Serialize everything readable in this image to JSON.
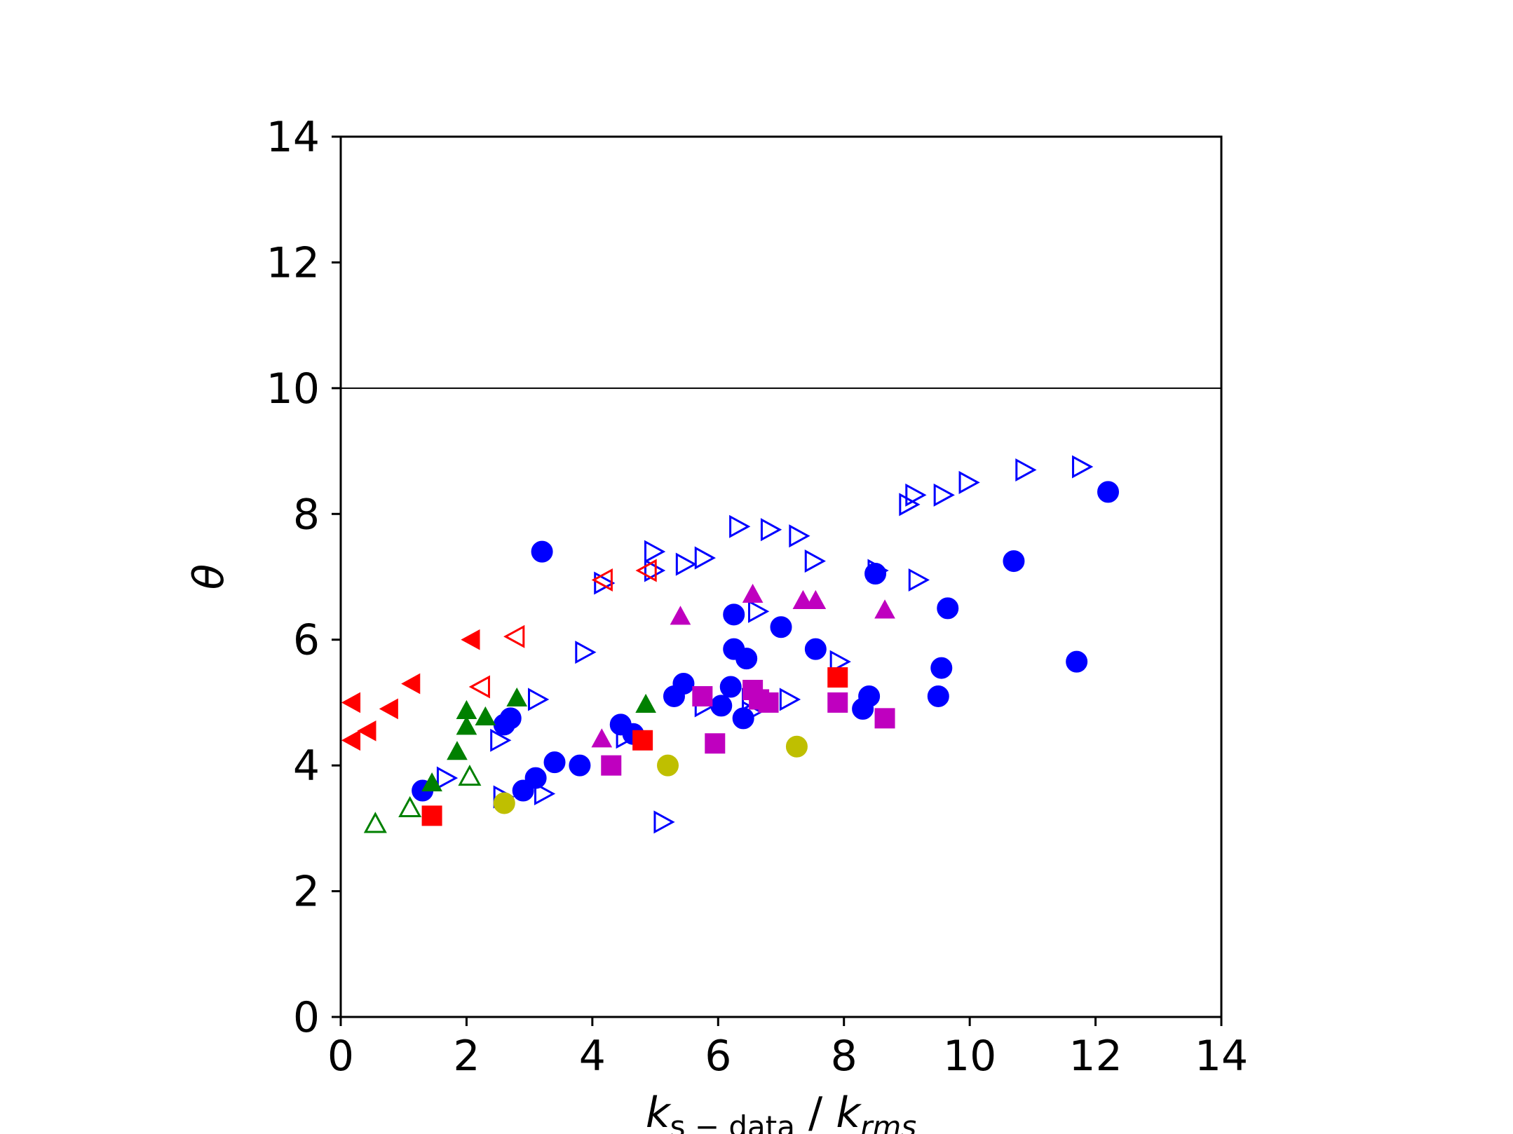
{
  "chart_data": {
    "type": "scatter",
    "title": "",
    "xlabel": "k_{s−data} / k_{rms}",
    "xlabel_parts": {
      "k1": "k",
      "sub1": "s − data",
      "sep": " / ",
      "k2": "k",
      "sub2": "rms"
    },
    "ylabel": "θ",
    "xlim": [
      0,
      14
    ],
    "ylim": [
      0,
      14
    ],
    "xticks": [
      "0",
      "2",
      "4",
      "6",
      "8",
      "10",
      "12",
      "14"
    ],
    "yticks": [
      "0",
      "2",
      "4",
      "6",
      "8",
      "10",
      "12",
      "14"
    ],
    "hline": 10,
    "grid": false,
    "legend": "none",
    "series": [
      {
        "marker": "circle-filled",
        "color": "#0000ff",
        "points": [
          [
            1.3,
            3.6
          ],
          [
            2.6,
            4.65
          ],
          [
            2.7,
            4.75
          ],
          [
            3.2,
            7.4
          ],
          [
            2.9,
            3.6
          ],
          [
            3.1,
            3.8
          ],
          [
            3.4,
            4.05
          ],
          [
            3.8,
            4.0
          ],
          [
            4.45,
            4.65
          ],
          [
            4.65,
            4.5
          ],
          [
            5.3,
            5.1
          ],
          [
            5.45,
            5.3
          ],
          [
            6.05,
            4.95
          ],
          [
            6.2,
            5.25
          ],
          [
            6.25,
            6.4
          ],
          [
            6.25,
            5.85
          ],
          [
            6.45,
            5.7
          ],
          [
            7.0,
            6.2
          ],
          [
            7.55,
            5.85
          ],
          [
            8.3,
            4.9
          ],
          [
            8.4,
            5.1
          ],
          [
            8.5,
            7.05
          ],
          [
            9.5,
            5.1
          ],
          [
            9.55,
            5.55
          ],
          [
            9.65,
            6.5
          ],
          [
            10.7,
            7.25
          ],
          [
            11.7,
            5.65
          ],
          [
            12.2,
            8.35
          ],
          [
            6.4,
            4.75
          ]
        ]
      },
      {
        "marker": "triangle-right-open",
        "color": "#0000ff",
        "points": [
          [
            1.65,
            3.8
          ],
          [
            2.5,
            4.4
          ],
          [
            2.55,
            3.5
          ],
          [
            3.1,
            5.05
          ],
          [
            3.2,
            3.55
          ],
          [
            3.85,
            5.8
          ],
          [
            4.15,
            6.9
          ],
          [
            4.5,
            4.45
          ],
          [
            4.95,
            7.4
          ],
          [
            4.95,
            7.1
          ],
          [
            5.1,
            3.1
          ],
          [
            5.45,
            7.2
          ],
          [
            5.75,
            7.3
          ],
          [
            5.75,
            4.95
          ],
          [
            6.3,
            7.8
          ],
          [
            6.5,
            4.85
          ],
          [
            6.6,
            6.45
          ],
          [
            6.8,
            7.75
          ],
          [
            7.1,
            5.05
          ],
          [
            7.25,
            7.65
          ],
          [
            7.5,
            7.25
          ],
          [
            7.9,
            5.65
          ],
          [
            8.5,
            7.1
          ],
          [
            9.0,
            8.15
          ],
          [
            9.1,
            8.3
          ],
          [
            9.15,
            6.95
          ],
          [
            9.55,
            8.3
          ],
          [
            9.95,
            8.5
          ],
          [
            10.85,
            8.7
          ],
          [
            11.75,
            8.75
          ],
          [
            6.5,
            5.05
          ]
        ]
      },
      {
        "marker": "triangle-left-filled",
        "color": "#ff0000",
        "points": [
          [
            0.2,
            5.0
          ],
          [
            0.2,
            4.4
          ],
          [
            0.45,
            4.55
          ],
          [
            0.8,
            4.9
          ],
          [
            1.15,
            5.3
          ],
          [
            2.1,
            6.0
          ]
        ]
      },
      {
        "marker": "triangle-left-open",
        "color": "#ff0000",
        "points": [
          [
            2.25,
            5.25
          ],
          [
            2.8,
            6.05
          ],
          [
            4.2,
            6.95
          ],
          [
            4.9,
            7.1
          ]
        ]
      },
      {
        "marker": "square-filled",
        "color": "#ff0000",
        "points": [
          [
            1.45,
            3.2
          ],
          [
            4.8,
            4.4
          ],
          [
            7.9,
            5.4
          ]
        ]
      },
      {
        "marker": "triangle-up-filled",
        "color": "#008000",
        "points": [
          [
            1.45,
            3.7
          ],
          [
            1.85,
            4.2
          ],
          [
            2.0,
            4.6
          ],
          [
            2.0,
            4.85
          ],
          [
            2.3,
            4.75
          ],
          [
            2.8,
            5.05
          ],
          [
            4.85,
            4.95
          ]
        ]
      },
      {
        "marker": "triangle-up-open",
        "color": "#008000",
        "points": [
          [
            0.55,
            3.05
          ],
          [
            1.1,
            3.3
          ],
          [
            2.05,
            3.8
          ]
        ]
      },
      {
        "marker": "triangle-up-filled",
        "color": "#bf00bf",
        "points": [
          [
            4.15,
            4.4
          ],
          [
            5.4,
            6.35
          ],
          [
            6.55,
            6.7
          ],
          [
            7.35,
            6.6
          ],
          [
            7.55,
            6.6
          ],
          [
            8.65,
            6.45
          ]
        ]
      },
      {
        "marker": "square-filled",
        "color": "#bf00bf",
        "points": [
          [
            4.3,
            4.0
          ],
          [
            5.75,
            5.1
          ],
          [
            5.95,
            4.35
          ],
          [
            6.55,
            5.2
          ],
          [
            6.65,
            5.05
          ],
          [
            6.8,
            5.0
          ],
          [
            7.9,
            5.0
          ],
          [
            8.65,
            4.75
          ]
        ]
      },
      {
        "marker": "circle-filled",
        "color": "#bfbf00",
        "points": [
          [
            2.6,
            3.4
          ],
          [
            5.2,
            4.0
          ],
          [
            7.25,
            4.3
          ]
        ]
      }
    ]
  }
}
